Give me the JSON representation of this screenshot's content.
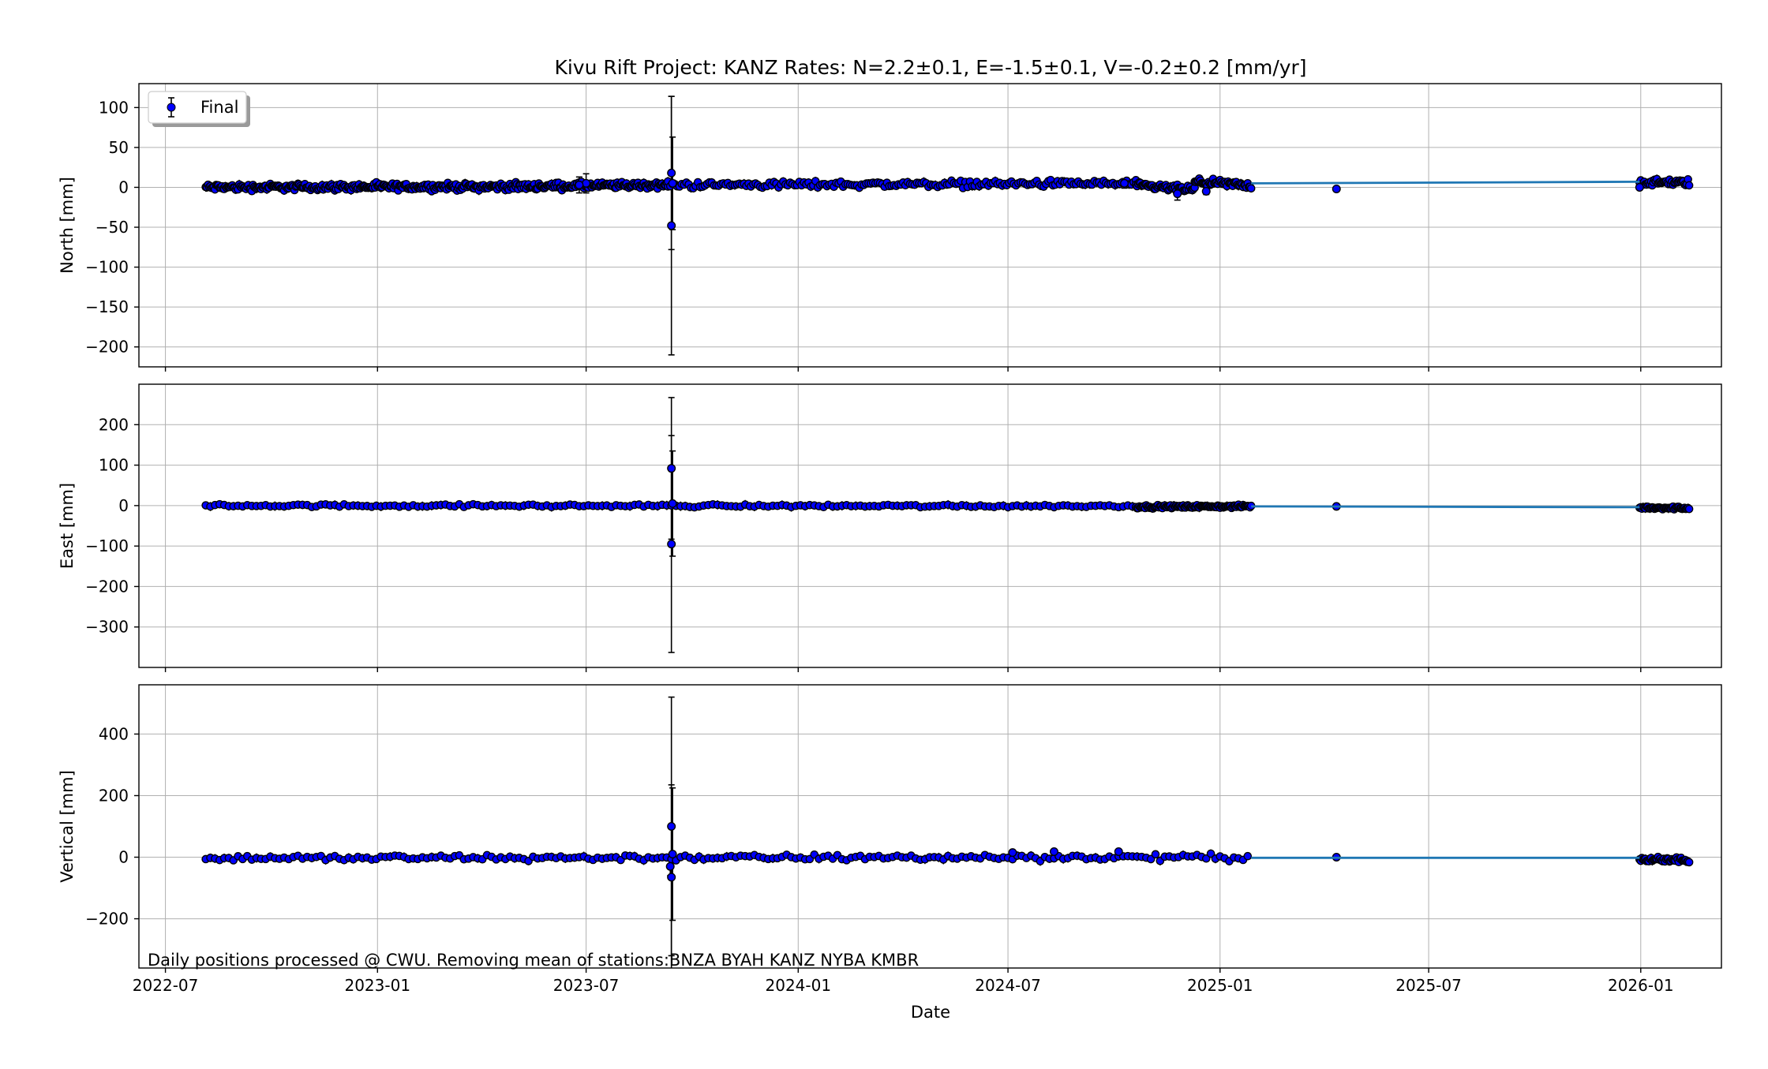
{
  "figure": {
    "title": "Kivu Rift Project: KANZ  Rates: N=2.2±0.1, E=-1.5±0.1, V=-0.2±0.2 [mm/yr]",
    "xlabel": "Date",
    "footnote": "Daily positions processed @ CWU. Removing mean of stations:BNZA BYAH KANZ NYBA KMBR",
    "legend_label": "Final",
    "legend_location": "upper-left"
  },
  "colors": {
    "marker_fill": "#0000ff",
    "marker_edge": "#000000",
    "errorbar": "#000000",
    "fit_line": "#1f77b4",
    "grid": "#b0b0b0"
  },
  "chart_data": [
    {
      "type": "scatter",
      "panel": "north",
      "ylabel": "North [mm]",
      "xlim": [
        "2022-06-08",
        "2026-03-12"
      ],
      "ylim": [
        -225,
        130
      ],
      "yticks": [
        100,
        50,
        0,
        -50,
        -100,
        -150,
        -200
      ],
      "xticks": [
        "2022-07",
        "2023-01",
        "2023-07",
        "2024-01",
        "2024-07",
        "2025-01",
        "2025-07",
        "2026-01"
      ],
      "grid": true,
      "fit_line": {
        "x": [
          "2025-01-28",
          "2025-12-31"
        ],
        "y": [
          5,
          7
        ]
      },
      "series": [
        {
          "name": "Final",
          "style": "errorbar-scatter",
          "noise": 3,
          "segments": [
            {
              "x": [
                "2022-08-05",
                "2023-05-01"
              ],
              "y": [
                0,
                1
              ]
            },
            {
              "x": [
                "2023-05-01",
                "2023-09-10"
              ],
              "y": [
                1,
                3
              ]
            },
            {
              "x": [
                "2023-09-10",
                "2024-10-20"
              ],
              "y": [
                3,
                5
              ]
            },
            {
              "x": [
                "2024-10-20",
                "2024-12-10"
              ],
              "y": [
                2,
                -3
              ]
            },
            {
              "x": [
                "2024-12-10",
                "2025-01-28"
              ],
              "y": [
                7,
                2
              ]
            },
            {
              "x": [
                "2025-12-31",
                "2026-02-12"
              ],
              "y": [
                6,
                6
              ]
            }
          ],
          "points": [
            {
              "x": "2023-09-13",
              "y": 18,
              "err": 96
            },
            {
              "x": "2023-09-13",
              "y": -48,
              "err": 162
            },
            {
              "x": "2023-09-14",
              "y": 5,
              "err": 58
            },
            {
              "x": "2023-07-01",
              "y": 5,
              "err": 12
            },
            {
              "x": "2023-06-25",
              "y": 3,
              "err": 10
            },
            {
              "x": "2024-11-25",
              "y": -8,
              "err": 8
            },
            {
              "x": "2024-12-20",
              "y": -5,
              "err": 4
            },
            {
              "x": "2025-04-12",
              "y": -2,
              "err": 3
            },
            {
              "x": "2024-10-10",
              "y": 5,
              "err": 6
            },
            {
              "x": "2025-12-31",
              "y": 0,
              "err": 2
            }
          ]
        }
      ]
    },
    {
      "type": "scatter",
      "panel": "east",
      "ylabel": "East [mm]",
      "xlim": [
        "2022-06-08",
        "2026-03-12"
      ],
      "ylim": [
        -400,
        300
      ],
      "yticks": [
        200,
        100,
        0,
        -100,
        -200,
        -300
      ],
      "xticks": [
        "2022-07",
        "2023-01",
        "2023-07",
        "2024-01",
        "2024-07",
        "2025-01",
        "2025-07",
        "2026-01"
      ],
      "grid": true,
      "fit_line": {
        "x": [
          "2025-01-28",
          "2025-12-31"
        ],
        "y": [
          -2,
          -4
        ]
      },
      "series": [
        {
          "name": "Final",
          "style": "errorbar-scatter",
          "noise": 2.5,
          "segments": [
            {
              "x": [
                "2022-08-05",
                "2024-10-20"
              ],
              "y": [
                0,
                -1
              ]
            },
            {
              "x": [
                "2024-10-20",
                "2025-01-28"
              ],
              "y": [
                -3,
                -2
              ]
            },
            {
              "x": [
                "2025-12-31",
                "2026-02-12"
              ],
              "y": [
                -5,
                -6
              ]
            }
          ],
          "points": [
            {
              "x": "2023-09-13",
              "y": 92,
              "err": 175
            },
            {
              "x": "2023-09-13",
              "y": -95,
              "err": 268
            },
            {
              "x": "2023-09-14",
              "y": 5,
              "err": 130
            },
            {
              "x": "2025-04-12",
              "y": -2,
              "err": 2
            }
          ]
        }
      ]
    },
    {
      "type": "scatter",
      "panel": "vertical",
      "ylabel": "Vertical [mm]",
      "xlim": [
        "2022-06-08",
        "2026-03-12"
      ],
      "ylim": [
        -360,
        560
      ],
      "yticks": [
        400,
        200,
        0,
        -200
      ],
      "xticks": [
        "2022-07",
        "2023-01",
        "2023-07",
        "2024-01",
        "2024-07",
        "2025-01",
        "2025-07",
        "2026-01"
      ],
      "grid": true,
      "fit_line": {
        "x": [
          "2025-01-28",
          "2025-12-31"
        ],
        "y": [
          -2,
          -2
        ]
      },
      "series": [
        {
          "name": "Final",
          "style": "errorbar-scatter",
          "noise": 7,
          "segments": [
            {
              "x": [
                "2022-08-05",
                "2025-01-28"
              ],
              "y": [
                -3,
                0
              ]
            },
            {
              "x": [
                "2025-12-31",
                "2026-02-12"
              ],
              "y": [
                -8,
                -10
              ]
            }
          ],
          "points": [
            {
              "x": "2023-09-13",
              "y": 100,
              "err": 420
            },
            {
              "x": "2023-09-13",
              "y": -65,
              "err": 300
            },
            {
              "x": "2023-09-14",
              "y": 10,
              "err": 215
            },
            {
              "x": "2023-09-12",
              "y": -30,
              "err": 30
            },
            {
              "x": "2024-07-05",
              "y": 15,
              "err": 6
            },
            {
              "x": "2024-08-10",
              "y": 18,
              "err": 6
            },
            {
              "x": "2024-10-05",
              "y": 18,
              "err": 6
            },
            {
              "x": "2025-04-12",
              "y": 0,
              "err": 3
            }
          ]
        }
      ]
    }
  ]
}
